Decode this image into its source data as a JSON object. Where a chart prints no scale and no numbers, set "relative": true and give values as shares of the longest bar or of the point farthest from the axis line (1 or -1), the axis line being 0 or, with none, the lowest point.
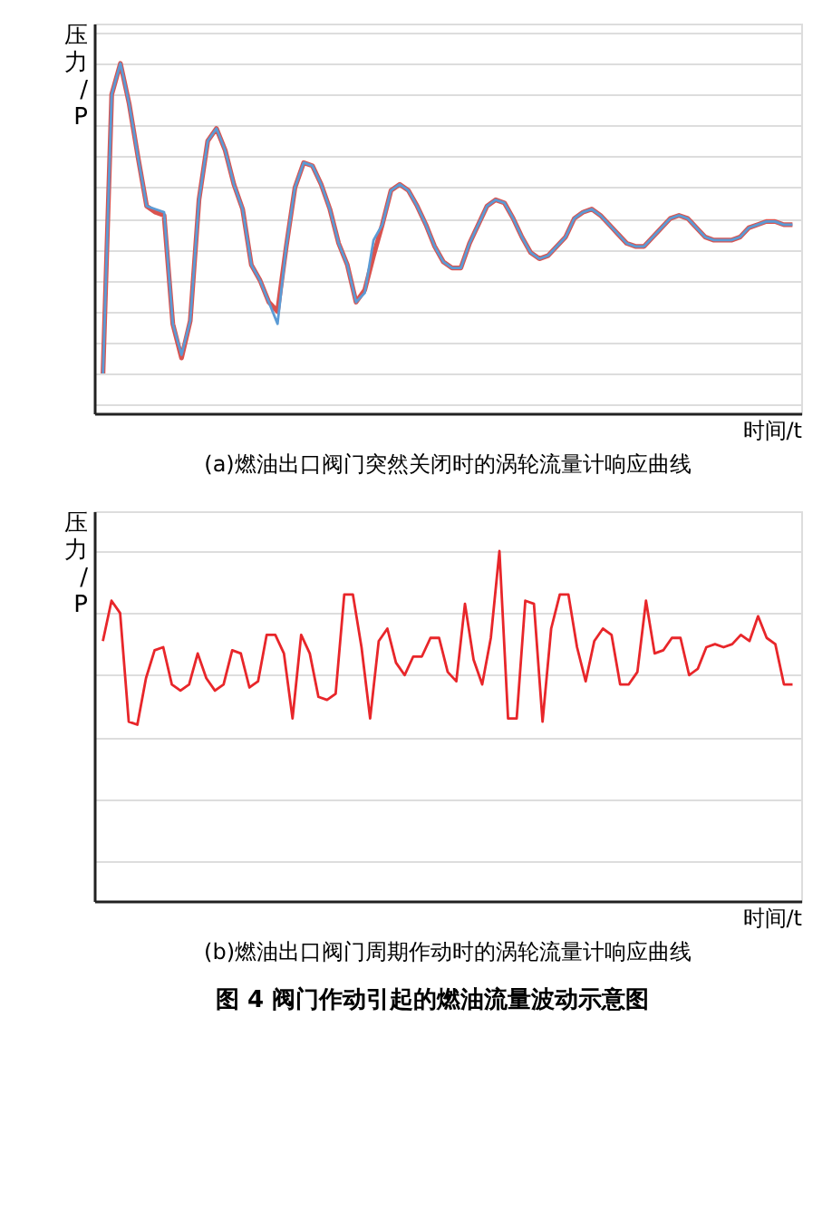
{
  "chart_data": [
    {
      "type": "line",
      "relative": true,
      "title": "(a)燃油出口阀门突然关闭时的涡轮流量计响应曲线",
      "ylabel": "压力/P",
      "xlabel": "时间/t",
      "grid": "y",
      "legend": false,
      "marker": "none",
      "line_style": "solid",
      "tick_labels": false,
      "categories": [
        null,
        null,
        null,
        null,
        null,
        null,
        null,
        null,
        null,
        null,
        null,
        null,
        null,
        null,
        null,
        null,
        null,
        null,
        null,
        null,
        null,
        null,
        null,
        null,
        null,
        null,
        null,
        null,
        null,
        null,
        null,
        null,
        null,
        null,
        null,
        null,
        null,
        null,
        null,
        null,
        null,
        null,
        null,
        null,
        null,
        null,
        null,
        null,
        null,
        null,
        null,
        null,
        null,
        null,
        null,
        null,
        null,
        null,
        null,
        null,
        null,
        null,
        null,
        null,
        null,
        null,
        null,
        null,
        null,
        null,
        null,
        null,
        null,
        null,
        null,
        null,
        null,
        null,
        null,
        null
      ],
      "series": [
        {
          "color": "#d9534f",
          "values": [
            0,
            0.9,
            1.0,
            0.87,
            0.7,
            0.54,
            0.52,
            0.51,
            0.16,
            0.05,
            0.17,
            0.56,
            0.75,
            0.79,
            0.72,
            0.61,
            0.53,
            0.35,
            0.3,
            0.23,
            0.2,
            0.41,
            0.6,
            0.68,
            0.67,
            0.61,
            0.53,
            0.42,
            0.35,
            0.23,
            0.27,
            0.38,
            0.48,
            0.59,
            0.61,
            0.59,
            0.54,
            0.48,
            0.41,
            0.36,
            0.34,
            0.34,
            0.42,
            0.48,
            0.54,
            0.56,
            0.55,
            0.5,
            0.44,
            0.39,
            0.37,
            0.38,
            0.41,
            0.44,
            0.5,
            0.52,
            0.53,
            0.51,
            0.48,
            0.45,
            0.42,
            0.41,
            0.41,
            0.44,
            0.47,
            0.5,
            0.51,
            0.5,
            0.47,
            0.44,
            0.43,
            0.43,
            0.43,
            0.44,
            0.47,
            0.48,
            0.49,
            0.49,
            0.48,
            0.48
          ]
        },
        {
          "color": "#5b9bd5",
          "values": [
            0,
            0.9,
            1.0,
            0.87,
            0.7,
            0.54,
            0.53,
            0.52,
            0.16,
            0.06,
            0.17,
            0.56,
            0.75,
            0.79,
            0.72,
            0.61,
            0.53,
            0.35,
            0.3,
            0.23,
            0.16,
            0.41,
            0.6,
            0.68,
            0.67,
            0.61,
            0.53,
            0.42,
            0.35,
            0.23,
            0.26,
            0.43,
            0.48,
            0.59,
            0.61,
            0.59,
            0.54,
            0.48,
            0.41,
            0.36,
            0.34,
            0.34,
            0.42,
            0.48,
            0.54,
            0.56,
            0.55,
            0.5,
            0.44,
            0.39,
            0.37,
            0.38,
            0.41,
            0.44,
            0.5,
            0.52,
            0.53,
            0.51,
            0.48,
            0.45,
            0.42,
            0.41,
            0.41,
            0.44,
            0.47,
            0.5,
            0.51,
            0.5,
            0.47,
            0.44,
            0.43,
            0.43,
            0.43,
            0.44,
            0.47,
            0.48,
            0.49,
            0.49,
            0.48,
            0.48
          ]
        }
      ]
    },
    {
      "type": "line",
      "relative": true,
      "title": "(b)燃油出口阀门周期作动时的涡轮流量计响应曲线",
      "ylabel": "压力/P",
      "xlabel": "时间/t",
      "grid": "y",
      "legend": false,
      "marker": "none",
      "line_style": "solid",
      "tick_labels": false,
      "annotations": [
        "图 4  阀门作动引起的燃油流量波动示意图"
      ],
      "categories": [
        null,
        null,
        null,
        null,
        null,
        null,
        null,
        null,
        null,
        null,
        null,
        null,
        null,
        null,
        null,
        null,
        null,
        null,
        null,
        null,
        null,
        null,
        null,
        null,
        null,
        null,
        null,
        null,
        null,
        null,
        null,
        null,
        null,
        null,
        null,
        null,
        null,
        null,
        null,
        null,
        null,
        null,
        null,
        null,
        null,
        null,
        null,
        null,
        null,
        null,
        null,
        null,
        null,
        null,
        null,
        null,
        null,
        null,
        null,
        null,
        null,
        null,
        null,
        null,
        null,
        null,
        null,
        null,
        null,
        null,
        null,
        null,
        null,
        null,
        null,
        null,
        null,
        null,
        null,
        null,
        null
      ],
      "series": [
        {
          "color": "#e8262a",
          "values": [
            0.71,
            0.84,
            0.8,
            0.45,
            0.44,
            0.59,
            0.68,
            0.69,
            0.57,
            0.55,
            0.57,
            0.67,
            0.59,
            0.55,
            0.57,
            0.68,
            0.67,
            0.56,
            0.58,
            0.73,
            0.73,
            0.67,
            0.46,
            0.73,
            0.67,
            0.53,
            0.52,
            0.54,
            0.86,
            0.86,
            0.69,
            0.46,
            0.71,
            0.75,
            0.64,
            0.6,
            0.66,
            0.66,
            0.72,
            0.72,
            0.61,
            0.58,
            0.83,
            0.65,
            0.57,
            0.72,
            1.0,
            0.46,
            0.46,
            0.84,
            0.83,
            0.45,
            0.75,
            0.86,
            0.86,
            0.69,
            0.58,
            0.71,
            0.75,
            0.73,
            0.57,
            0.57,
            0.61,
            0.84,
            0.67,
            0.68,
            0.72,
            0.72,
            0.6,
            0.62,
            0.69,
            0.7,
            0.69,
            0.7,
            0.73,
            0.71,
            0.79,
            0.72,
            0.7,
            0.57,
            0.57
          ]
        }
      ]
    }
  ]
}
